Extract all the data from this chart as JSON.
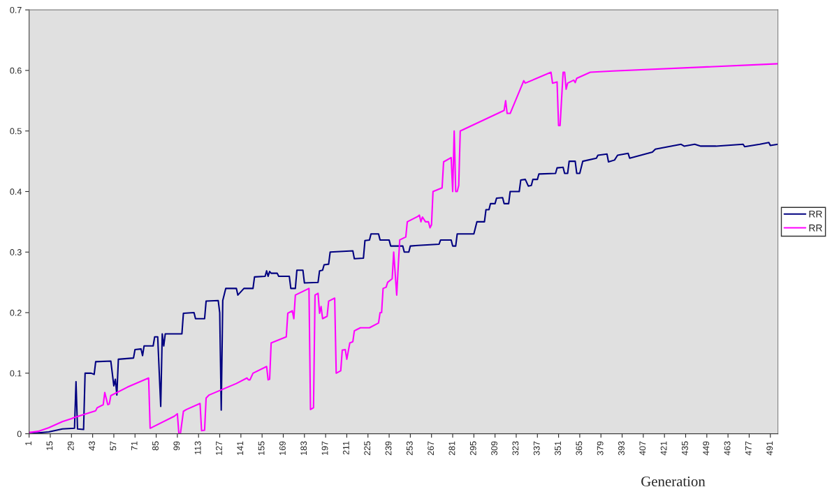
{
  "chart_data": {
    "type": "line",
    "xlabel": "Generation",
    "xlim": [
      1,
      496
    ],
    "xticks": [
      1,
      15,
      29,
      43,
      57,
      71,
      85,
      99,
      113,
      127,
      141,
      155,
      169,
      183,
      197,
      211,
      225,
      239,
      253,
      267,
      281,
      295,
      309,
      323,
      337,
      351,
      365,
      379,
      393,
      407,
      421,
      435,
      449,
      463,
      477,
      491
    ],
    "ylim": [
      0,
      0.7
    ],
    "yticks": [
      0,
      0.1,
      0.2,
      0.3,
      0.4,
      0.5,
      0.6,
      0.7
    ],
    "grid": false,
    "legend": "right",
    "marker": "none",
    "line_style": "solid",
    "series": [
      {
        "name": "RR",
        "color": "#000080",
        "x": [
          1,
          14,
          23,
          31,
          32,
          33,
          37,
          38,
          42,
          44,
          45,
          55,
          57,
          58,
          59,
          60,
          70,
          71,
          75,
          76,
          77,
          83,
          84,
          86,
          88,
          89,
          90,
          91,
          102,
          103,
          110,
          111,
          117,
          118,
          126,
          127,
          128,
          129,
          131,
          138,
          139,
          143,
          149,
          150,
          157,
          158,
          159,
          160,
          161,
          165,
          166,
          173,
          174,
          177,
          178,
          182,
          183,
          192,
          193,
          195,
          196,
          199,
          200,
          215,
          216,
          222,
          223,
          226,
          227,
          232,
          233,
          239,
          240,
          248,
          249,
          252,
          253,
          258,
          272,
          273,
          280,
          281,
          283,
          284,
          295,
          297,
          302,
          303,
          305,
          306,
          309,
          310,
          314,
          315,
          318,
          319,
          325,
          326,
          329,
          331,
          333,
          334,
          337,
          338,
          349,
          350,
          354,
          355,
          357,
          358,
          362,
          363,
          365,
          367,
          376,
          377,
          383,
          384,
          388,
          390,
          397,
          398,
          413,
          415,
          432,
          434,
          441,
          445,
          455,
          473,
          474,
          484,
          490,
          491,
          496
        ],
        "values": [
          0,
          0.003,
          0.008,
          0.009,
          0.086,
          0.008,
          0.007,
          0.1,
          0.1,
          0.098,
          0.119,
          0.12,
          0.079,
          0.09,
          0.064,
          0.123,
          0.125,
          0.139,
          0.14,
          0.129,
          0.145,
          0.145,
          0.16,
          0.16,
          0.045,
          0.165,
          0.145,
          0.165,
          0.165,
          0.199,
          0.2,
          0.19,
          0.19,
          0.219,
          0.22,
          0.2,
          0.039,
          0.22,
          0.24,
          0.24,
          0.229,
          0.24,
          0.24,
          0.259,
          0.26,
          0.269,
          0.26,
          0.268,
          0.265,
          0.265,
          0.26,
          0.26,
          0.24,
          0.24,
          0.27,
          0.27,
          0.249,
          0.25,
          0.269,
          0.27,
          0.279,
          0.28,
          0.3,
          0.302,
          0.289,
          0.29,
          0.319,
          0.32,
          0.33,
          0.33,
          0.32,
          0.32,
          0.31,
          0.31,
          0.3,
          0.3,
          0.31,
          0.311,
          0.313,
          0.32,
          0.32,
          0.31,
          0.31,
          0.33,
          0.33,
          0.35,
          0.35,
          0.37,
          0.37,
          0.38,
          0.38,
          0.389,
          0.39,
          0.38,
          0.38,
          0.4,
          0.4,
          0.419,
          0.42,
          0.409,
          0.41,
          0.42,
          0.42,
          0.429,
          0.43,
          0.439,
          0.44,
          0.43,
          0.43,
          0.45,
          0.45,
          0.43,
          0.43,
          0.45,
          0.455,
          0.46,
          0.462,
          0.449,
          0.452,
          0.46,
          0.463,
          0.455,
          0.465,
          0.47,
          0.478,
          0.475,
          0.478,
          0.475,
          0.475,
          0.478,
          0.474,
          0.478,
          0.481,
          0.476,
          0.478
        ]
      },
      {
        "name": "RR",
        "color": "#ff00ff",
        "x": [
          1,
          7,
          14,
          23,
          29,
          31,
          45,
          46,
          50,
          51,
          53,
          54,
          55,
          66,
          80,
          81,
          97,
          99,
          100,
          101,
          103,
          105,
          114,
          115,
          117,
          118,
          120,
          138,
          145,
          146,
          147,
          149,
          158,
          159,
          160,
          161,
          171,
          172,
          175,
          176,
          177,
          186,
          187,
          189,
          190,
          192,
          193,
          194,
          195,
          198,
          199,
          203,
          204,
          207,
          208,
          210,
          211,
          213,
          215,
          216,
          220,
          226,
          232,
          233,
          234,
          235,
          237,
          238,
          241,
          242,
          244,
          245,
          246,
          250,
          251,
          258,
          259,
          260,
          261,
          263,
          265,
          266,
          267,
          268,
          274,
          275,
          280,
          281,
          282,
          283,
          284,
          285,
          286,
          315,
          316,
          317,
          319,
          328,
          329,
          346,
          347,
          350,
          351,
          352,
          354,
          355,
          356,
          357,
          361,
          362,
          363,
          372,
          387,
          496
        ],
        "values": [
          0.002,
          0.004,
          0.01,
          0.02,
          0.025,
          0.027,
          0.038,
          0.043,
          0.048,
          0.068,
          0.048,
          0.049,
          0.063,
          0.077,
          0.092,
          0.009,
          0.029,
          0.033,
          0.0,
          0.0,
          0.037,
          0.04,
          0.05,
          0.005,
          0.006,
          0.059,
          0.064,
          0.083,
          0.092,
          0.089,
          0.089,
          0.1,
          0.111,
          0.089,
          0.09,
          0.15,
          0.16,
          0.199,
          0.203,
          0.19,
          0.229,
          0.24,
          0.04,
          0.043,
          0.229,
          0.232,
          0.199,
          0.21,
          0.19,
          0.194,
          0.219,
          0.224,
          0.1,
          0.104,
          0.138,
          0.139,
          0.123,
          0.15,
          0.152,
          0.17,
          0.175,
          0.175,
          0.183,
          0.2,
          0.2,
          0.24,
          0.242,
          0.25,
          0.256,
          0.3,
          0.229,
          0.276,
          0.32,
          0.325,
          0.35,
          0.359,
          0.361,
          0.35,
          0.358,
          0.35,
          0.35,
          0.34,
          0.345,
          0.4,
          0.406,
          0.449,
          0.456,
          0.4,
          0.5,
          0.4,
          0.4,
          0.41,
          0.5,
          0.534,
          0.55,
          0.529,
          0.529,
          0.583,
          0.579,
          0.597,
          0.579,
          0.581,
          0.509,
          0.509,
          0.597,
          0.597,
          0.569,
          0.579,
          0.584,
          0.58,
          0.587,
          0.597,
          0.599,
          0.611
        ]
      }
    ]
  }
}
